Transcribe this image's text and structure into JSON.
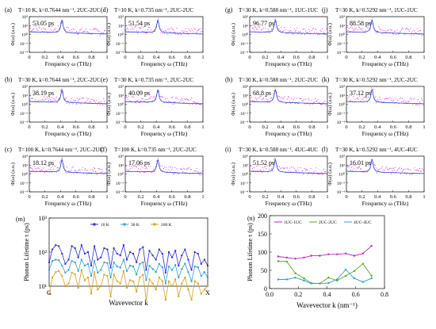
{
  "chart_data": [
    {
      "panel": "(a)",
      "type": "scatter",
      "title": "T=10 K, k=0.7644 nm⁻¹, 2UC-2UC",
      "lifetime_label": "53.05 ps",
      "peak": 0.42,
      "xlabel": "Frequency ω (THz)",
      "ylabel": "Φ(ω) (a.u.)",
      "xlim": [
        0,
        1
      ],
      "ylim": [
        -4,
        4
      ],
      "xticks": [
        "0",
        "0.2",
        "0.4",
        "0.6",
        "0.8",
        "1"
      ],
      "yticks": [
        "10⁻⁴",
        "10⁻²",
        "10⁰",
        "10²",
        "10⁴"
      ],
      "series": [
        {
          "values": "MD spectrum (magenta)"
        },
        {
          "values": "Lorentzian fit (blue)"
        }
      ]
    },
    {
      "panel": "(d)",
      "type": "scatter",
      "title": "T=10 K, k=0.735 nm⁻¹, 2UC-2UC",
      "lifetime_label": "51.54 ps",
      "peak": 0.42,
      "xlim": [
        0,
        1
      ],
      "ylim": [
        -4,
        4
      ]
    },
    {
      "panel": "(g)",
      "type": "scatter",
      "title": "T=30 K, k=0.588 nm⁻¹, 1UC-1UC",
      "lifetime_label": "96.77 ps",
      "peak": 0.33,
      "xlim": [
        0,
        1
      ],
      "ylim": [
        -4,
        4
      ]
    },
    {
      "panel": "(j)",
      "type": "scatter",
      "title": "T=30 K, k=0.5292 nm⁻¹, 1UC-1UC",
      "lifetime_label": "88.58 ps",
      "peak": 0.33,
      "xlim": [
        0,
        1
      ],
      "ylim": [
        -4,
        4
      ]
    },
    {
      "panel": "(b)",
      "type": "scatter",
      "title": "T=30 K, k=0.7644 nm⁻¹, 2UC-2UC",
      "lifetime_label": "38.19 ps",
      "peak": 0.42,
      "xlim": [
        0,
        1
      ],
      "ylim": [
        -4,
        4
      ]
    },
    {
      "panel": "(e)",
      "type": "scatter",
      "title": "T=30 K, k=0.735 nm⁻¹, 2UC-2UC",
      "lifetime_label": "40.09 ps",
      "peak": 0.42,
      "xlim": [
        0,
        1
      ],
      "ylim": [
        -4,
        4
      ]
    },
    {
      "panel": "(h)",
      "type": "scatter",
      "title": "T=30 K, k=0.588 nm⁻¹, 2UC-2UC",
      "lifetime_label": "68.8 ps",
      "peak": 0.33,
      "xlim": [
        0,
        1
      ],
      "ylim": [
        -4,
        4
      ]
    },
    {
      "panel": "(k)",
      "type": "scatter",
      "title": "T=30 K, k=0.5292 nm⁻¹, 2UC-2UC",
      "lifetime_label": "37.12 ps",
      "peak": 0.33,
      "xlim": [
        0,
        1
      ],
      "ylim": [
        -4,
        4
      ]
    },
    {
      "panel": "(c)",
      "type": "scatter",
      "title": "T=100 K, k=0.7644 nm⁻¹, 2UC-2UC",
      "lifetime_label": "18.12 ps",
      "peak": 0.42,
      "xlim": [
        0,
        1
      ],
      "ylim": [
        -4,
        4
      ]
    },
    {
      "panel": "(f)",
      "type": "scatter",
      "title": "T=100 K, k=0.735 nm⁻¹, 2UC-2UC",
      "lifetime_label": "17.06 ps",
      "peak": 0.42,
      "xlim": [
        0,
        1
      ],
      "ylim": [
        -4,
        4
      ]
    },
    {
      "panel": "(i)",
      "type": "scatter",
      "title": "T=30 K, k=0.588 nm⁻¹, 4UC-4UC",
      "lifetime_label": "51.52 ps",
      "peak": 0.33,
      "xlim": [
        0,
        1
      ],
      "ylim": [
        -4,
        4
      ]
    },
    {
      "panel": "(l)",
      "type": "scatter",
      "title": "T=30 K, k=0.5292 nm⁻¹, 4UC-4UC",
      "lifetime_label": "16.01 ps",
      "peak": 0.33,
      "xlim": [
        0,
        1
      ],
      "ylim": [
        -4,
        4
      ]
    },
    {
      "panel": "(m)",
      "type": "line",
      "xlabel": "Wavevector k",
      "ylabel": "Phonon Lifetime τ (ps)",
      "xticks": [
        "G",
        "X"
      ],
      "yticks": [
        "10¹",
        "10²",
        "10³"
      ],
      "ylim_log": [
        1,
        3
      ],
      "legend": [
        "10 K",
        "30 K",
        "100 K"
      ],
      "series": [
        {
          "name": "10 K",
          "color": "#2b2bd6",
          "values": [
            50,
            120,
            160,
            150,
            90,
            45,
            60,
            150,
            130,
            70,
            160,
            90,
            100,
            40,
            150,
            60,
            70,
            130,
            120,
            35,
            130,
            90,
            80,
            160,
            60,
            100,
            90,
            50,
            120,
            140,
            30,
            110,
            80,
            60,
            120,
            90,
            25,
            100,
            70,
            110,
            40,
            80,
            120,
            60,
            30,
            100,
            90,
            45,
            60,
            40
          ]
        },
        {
          "name": "30 K",
          "color": "#2aa0d0",
          "values": [
            30,
            55,
            60,
            58,
            40,
            25,
            30,
            55,
            50,
            28,
            60,
            40,
            45,
            20,
            55,
            25,
            30,
            50,
            48,
            18,
            50,
            38,
            35,
            60,
            28,
            40,
            38,
            22,
            45,
            50,
            15,
            40,
            32,
            26,
            45,
            36,
            12,
            38,
            30,
            42,
            18,
            32,
            46,
            26,
            14,
            38,
            36,
            20,
            26,
            18
          ]
        },
        {
          "name": "100 K",
          "color": "#d6a020",
          "values": [
            6,
            18,
            26,
            28,
            20,
            10,
            12,
            25,
            22,
            9,
            30,
            15,
            18,
            6,
            26,
            8,
            10,
            22,
            20,
            5,
            22,
            14,
            12,
            28,
            9,
            15,
            14,
            7,
            18,
            22,
            4,
            16,
            12,
            8,
            18,
            14,
            4,
            14,
            10,
            16,
            5,
            12,
            18,
            8,
            4,
            14,
            12,
            6,
            8,
            10
          ]
        }
      ]
    },
    {
      "panel": "(n)",
      "type": "line",
      "xlabel": "Wavevector k (nm⁻¹)",
      "ylabel": "Phonon Lifetime τ (ps)",
      "xlim": [
        0,
        0.8
      ],
      "ylim": [
        0,
        200
      ],
      "xticks": [
        "0.0",
        "0.2",
        "0.4",
        "0.6",
        "0.8"
      ],
      "yticks": [
        "0",
        "50",
        "100",
        "150",
        "200"
      ],
      "legend": [
        "1UC-1UC",
        "2UC-2UC",
        "4UC-4UC"
      ],
      "x": [
        0.06,
        0.12,
        0.18,
        0.24,
        0.29,
        0.35,
        0.41,
        0.47,
        0.53,
        0.59,
        0.65,
        0.71
      ],
      "series": [
        {
          "name": "1UC-1UC",
          "color": "#c020c0",
          "values": [
            88,
            85,
            82,
            85,
            90,
            90,
            94,
            94,
            96,
            90,
            96,
            117
          ]
        },
        {
          "name": "2UC-2UC",
          "color": "#55aa22",
          "values": [
            75,
            74,
            42,
            28,
            15,
            14,
            30,
            22,
            35,
            48,
            68,
            35
          ]
        },
        {
          "name": "4UC-4UC",
          "color": "#2aa0d0",
          "values": [
            25,
            25,
            30,
            22,
            14,
            14,
            15,
            25,
            52,
            28,
            18,
            28
          ]
        }
      ]
    }
  ]
}
